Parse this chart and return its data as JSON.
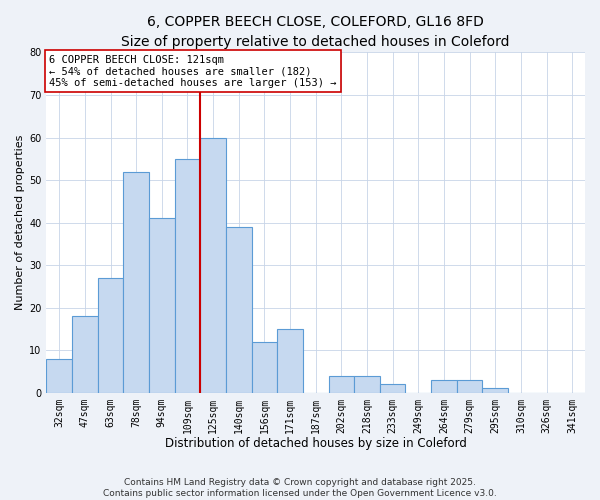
{
  "title": "6, COPPER BEECH CLOSE, COLEFORD, GL16 8FD",
  "subtitle": "Size of property relative to detached houses in Coleford",
  "xlabel": "Distribution of detached houses by size in Coleford",
  "ylabel": "Number of detached properties",
  "bar_labels": [
    "32sqm",
    "47sqm",
    "63sqm",
    "78sqm",
    "94sqm",
    "109sqm",
    "125sqm",
    "140sqm",
    "156sqm",
    "171sqm",
    "187sqm",
    "202sqm",
    "218sqm",
    "233sqm",
    "249sqm",
    "264sqm",
    "279sqm",
    "295sqm",
    "310sqm",
    "326sqm",
    "341sqm"
  ],
  "bar_values": [
    8,
    18,
    27,
    52,
    41,
    55,
    60,
    39,
    12,
    15,
    0,
    4,
    4,
    2,
    0,
    3,
    3,
    1,
    0,
    0,
    0
  ],
  "bar_color": "#c6d9f0",
  "bar_edgecolor": "#5b9bd5",
  "vline_bar_index": 6,
  "vline_color": "#cc0000",
  "annotation_line1": "6 COPPER BEECH CLOSE: 121sqm",
  "annotation_line2": "← 54% of detached houses are smaller (182)",
  "annotation_line3": "45% of semi-detached houses are larger (153) →",
  "annotation_box_edgecolor": "#cc0000",
  "ylim": [
    0,
    80
  ],
  "yticks": [
    0,
    10,
    20,
    30,
    40,
    50,
    60,
    70,
    80
  ],
  "footer1": "Contains HM Land Registry data © Crown copyright and database right 2025.",
  "footer2": "Contains public sector information licensed under the Open Government Licence v3.0.",
  "bg_color": "#eef2f8",
  "plot_bg_color": "#ffffff",
  "grid_color": "#c8d4e8",
  "title_fontsize": 10,
  "subtitle_fontsize": 9,
  "xlabel_fontsize": 8.5,
  "ylabel_fontsize": 8,
  "tick_fontsize": 7,
  "annotation_fontsize": 7.5,
  "footer_fontsize": 6.5
}
